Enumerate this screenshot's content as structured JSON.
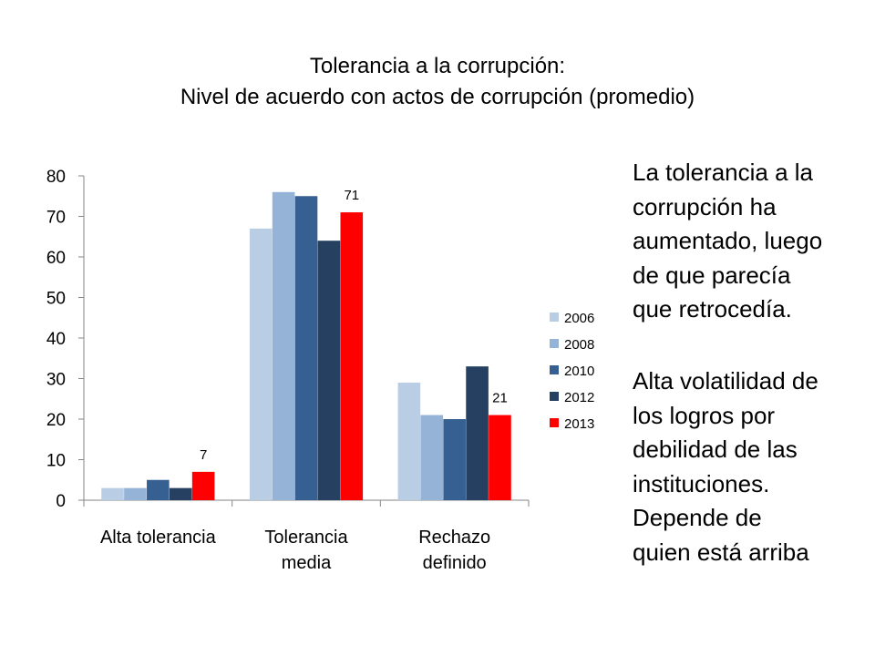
{
  "slide": {
    "title_line1": "Tolerancia a la corrupción:",
    "title_line2": "Nivel de acuerdo con actos de corrupción (promedio)",
    "side_text_1": [
      "La tolerancia a la",
      "corrupción ha",
      "aumentado, luego",
      "de que parecía",
      "que retrocedía."
    ],
    "side_text_2": [
      "Alta volatilidad de",
      "los logros por",
      "debilidad de las",
      "instituciones.",
      "Depende de",
      "quien está arriba"
    ]
  },
  "chart_data": {
    "type": "bar",
    "categories": [
      [
        "Alta tolerancia"
      ],
      [
        "Tolerancia",
        "media"
      ],
      [
        "Rechazo",
        "definido"
      ]
    ],
    "series": [
      {
        "name": "2006",
        "color": "#b9cde5",
        "values": [
          3,
          67,
          29
        ]
      },
      {
        "name": "2008",
        "color": "#95b3d7",
        "values": [
          3,
          76,
          21
        ]
      },
      {
        "name": "2010",
        "color": "#376092",
        "values": [
          5,
          75,
          20
        ]
      },
      {
        "name": "2012",
        "color": "#254061",
        "values": [
          3,
          64,
          33
        ]
      },
      {
        "name": "2013",
        "color": "#ff0000",
        "values": [
          7,
          71,
          21
        ]
      }
    ],
    "data_labels": [
      {
        "series": "2013",
        "category_index": 0,
        "text": "7"
      },
      {
        "series": "2013",
        "category_index": 1,
        "text": "71"
      },
      {
        "series": "2013",
        "category_index": 2,
        "text": "21"
      }
    ],
    "ylim": [
      0,
      80
    ],
    "yticks": [
      0,
      10,
      20,
      30,
      40,
      50,
      60,
      70,
      80
    ],
    "grid": false,
    "legend_position": "right"
  }
}
